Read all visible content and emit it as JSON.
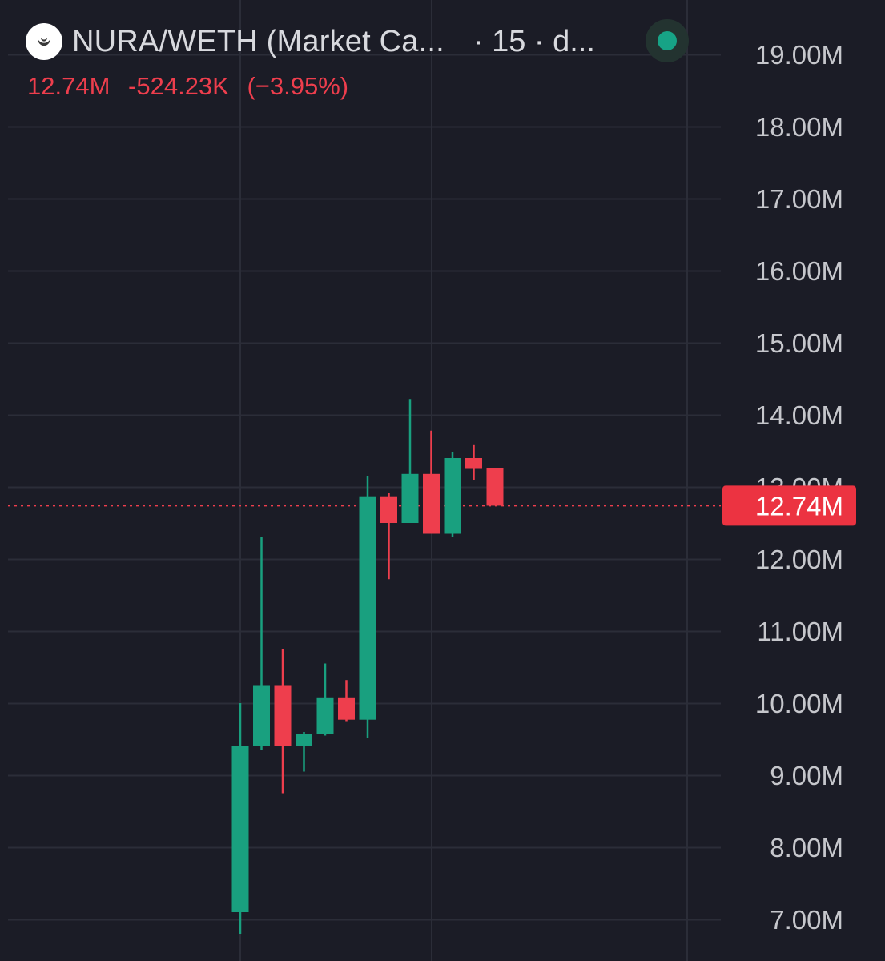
{
  "header": {
    "symbol": "NURA/WETH (Market Ca...",
    "interval": "· 15 · d...",
    "logo_icon": "crescent-moon-icon",
    "status_icon": "market-open-dot-icon",
    "status_color": "#17a386"
  },
  "ohlc": {
    "last": "12.74M",
    "change": "-524.23K",
    "change_pct": "(−3.95%)",
    "color": "#ee3e4d"
  },
  "colors": {
    "background": "#1b1c26",
    "grid": "#2b2d38",
    "up": "#19a07f",
    "down": "#ee3e4d",
    "axis_text": "#c6c7cc",
    "price_label_bg": "#ec3341",
    "price_label_text": "#ffffff"
  },
  "chart_data": {
    "type": "candlestick",
    "y_axis": {
      "position": "right",
      "ticks": [
        7,
        8,
        9,
        10,
        11,
        12,
        13,
        14,
        15,
        16,
        17,
        18,
        19
      ],
      "tick_labels": [
        "7.00M",
        "8.00M",
        "9.00M",
        "10.00M",
        "11.00M",
        "12.00M",
        "13.00M",
        "14.00M",
        "15.00M",
        "16.00M",
        "17.00M",
        "18.00M",
        "19.00M"
      ],
      "unit": "M"
    },
    "grid": true,
    "current_price": 12.74,
    "current_price_label": "12.74M",
    "candles": [
      {
        "open": 7.1,
        "high": 10.0,
        "low": 6.8,
        "close": 9.4
      },
      {
        "open": 9.4,
        "high": 12.3,
        "low": 9.35,
        "close": 10.25
      },
      {
        "open": 10.25,
        "high": 10.75,
        "low": 8.75,
        "close": 9.4
      },
      {
        "open": 9.4,
        "high": 9.6,
        "low": 9.05,
        "close": 9.57
      },
      {
        "open": 9.57,
        "high": 10.55,
        "low": 9.55,
        "close": 10.08
      },
      {
        "open": 10.08,
        "high": 10.32,
        "low": 9.75,
        "close": 9.77
      },
      {
        "open": 9.77,
        "high": 13.15,
        "low": 9.52,
        "close": 12.87
      },
      {
        "open": 12.87,
        "high": 12.92,
        "low": 11.72,
        "close": 12.5
      },
      {
        "open": 12.5,
        "high": 14.22,
        "low": 12.5,
        "close": 13.18
      },
      {
        "open": 13.18,
        "high": 13.78,
        "low": 12.35,
        "close": 12.35
      },
      {
        "open": 12.35,
        "high": 13.48,
        "low": 12.3,
        "close": 13.4
      },
      {
        "open": 13.4,
        "high": 13.58,
        "low": 13.1,
        "close": 13.25
      },
      {
        "open": 13.26,
        "high": 13.26,
        "low": 12.74,
        "close": 12.74
      }
    ]
  }
}
